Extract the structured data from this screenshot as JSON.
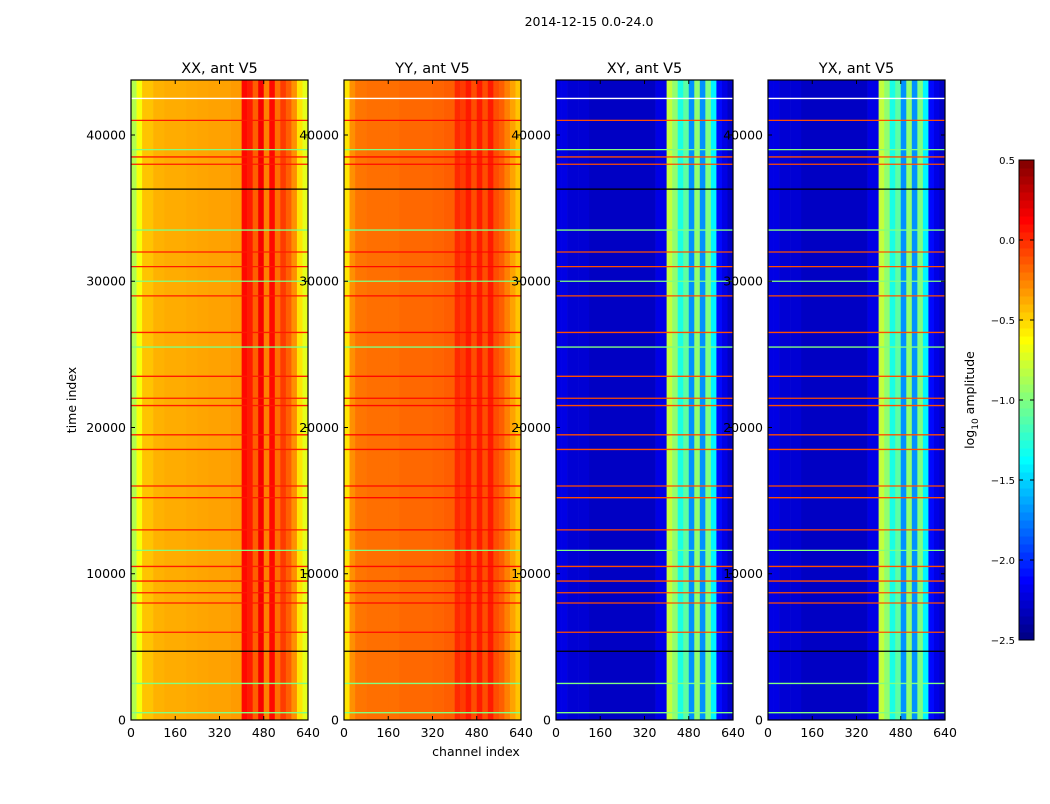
{
  "chart_data": {
    "type": "heatmap",
    "title": "2014-12-15 0.0-24.0",
    "xlabel": "channel index",
    "ylabel": "time index",
    "xlim": [
      0,
      640
    ],
    "ylim": [
      0,
      43760
    ],
    "xticks": [
      0,
      160,
      320,
      480,
      640
    ],
    "yticks": [
      0,
      10000,
      20000,
      30000,
      40000
    ],
    "colorbar": {
      "label": "log10 amplitude",
      "label_main": "log",
      "label_sub": "10",
      "label_rest": " amplitude",
      "colormap": "jet",
      "range": [
        -2.5,
        0.5
      ],
      "ticks": [
        "0.5",
        "0.0",
        "−0.5",
        "−1.0",
        "−1.5",
        "−2.0",
        "−2.5"
      ],
      "tick_values": [
        0.5,
        0.0,
        -0.5,
        -1.0,
        -1.5,
        -2.0,
        -2.5
      ]
    },
    "channel_bins": [
      0,
      20,
      40,
      80,
      120,
      160,
      200,
      240,
      280,
      320,
      360,
      400,
      420,
      440,
      460,
      480,
      500,
      520,
      540,
      560,
      580,
      600,
      620,
      640
    ],
    "flagged_rows": [
      {
        "time": 42500,
        "kind": "white"
      },
      {
        "time": 41000,
        "kind": "high"
      },
      {
        "time": 39000,
        "kind": "green"
      },
      {
        "time": 38500,
        "kind": "high"
      },
      {
        "time": 38000,
        "kind": "high"
      },
      {
        "time": 36300,
        "kind": "black"
      },
      {
        "time": 33500,
        "kind": "green"
      },
      {
        "time": 32000,
        "kind": "high"
      },
      {
        "time": 31000,
        "kind": "high"
      },
      {
        "time": 30000,
        "kind": "green"
      },
      {
        "time": 29000,
        "kind": "high"
      },
      {
        "time": 26500,
        "kind": "high"
      },
      {
        "time": 25500,
        "kind": "green"
      },
      {
        "time": 23500,
        "kind": "high"
      },
      {
        "time": 22000,
        "kind": "high"
      },
      {
        "time": 21500,
        "kind": "high"
      },
      {
        "time": 19500,
        "kind": "high"
      },
      {
        "time": 18500,
        "kind": "high"
      },
      {
        "time": 16000,
        "kind": "high"
      },
      {
        "time": 15200,
        "kind": "high"
      },
      {
        "time": 13000,
        "kind": "high"
      },
      {
        "time": 11600,
        "kind": "green"
      },
      {
        "time": 10500,
        "kind": "high"
      },
      {
        "time": 9500,
        "kind": "high"
      },
      {
        "time": 8700,
        "kind": "high"
      },
      {
        "time": 8000,
        "kind": "high"
      },
      {
        "time": 6000,
        "kind": "high"
      },
      {
        "time": 4700,
        "kind": "black"
      },
      {
        "time": 2500,
        "kind": "green"
      },
      {
        "time": 500,
        "kind": "green"
      }
    ],
    "panels": [
      {
        "title": "XX, ant V5",
        "row_value": 0.05,
        "profile": [
          -0.85,
          -0.65,
          -0.45,
          -0.4,
          -0.38,
          -0.38,
          -0.37,
          -0.36,
          -0.35,
          -0.35,
          -0.33,
          0.1,
          0.05,
          -0.15,
          0.15,
          -0.25,
          0.1,
          -0.2,
          -0.05,
          -0.15,
          -0.3,
          -0.55,
          -0.7
        ]
      },
      {
        "title": "YY, ant V5",
        "row_value": 0.1,
        "profile": [
          -0.55,
          -0.3,
          -0.22,
          -0.2,
          -0.2,
          -0.2,
          -0.18,
          -0.18,
          -0.18,
          -0.17,
          -0.15,
          0.0,
          -0.05,
          0.05,
          -0.1,
          0.05,
          -0.1,
          0.05,
          -0.1,
          -0.15,
          -0.25,
          -0.35,
          -0.45
        ]
      },
      {
        "title": "XY, ant V5",
        "row_value": -0.1,
        "profile": [
          -2.2,
          -2.2,
          -2.25,
          -2.25,
          -2.3,
          -2.3,
          -2.3,
          -2.3,
          -2.3,
          -2.3,
          -2.2,
          -0.8,
          -0.95,
          -1.3,
          -1.1,
          -1.7,
          -0.95,
          -1.7,
          -1.0,
          -1.4,
          -2.1,
          -2.2,
          -2.3
        ]
      },
      {
        "title": "YX, ant V5",
        "row_value": -0.1,
        "profile": [
          -2.2,
          -2.2,
          -2.25,
          -2.25,
          -2.3,
          -2.3,
          -2.3,
          -2.3,
          -2.3,
          -2.3,
          -2.2,
          -0.8,
          -0.95,
          -1.3,
          -1.1,
          -1.7,
          -0.95,
          -1.7,
          -1.0,
          -1.4,
          -2.1,
          -2.2,
          -2.3
        ]
      }
    ]
  }
}
